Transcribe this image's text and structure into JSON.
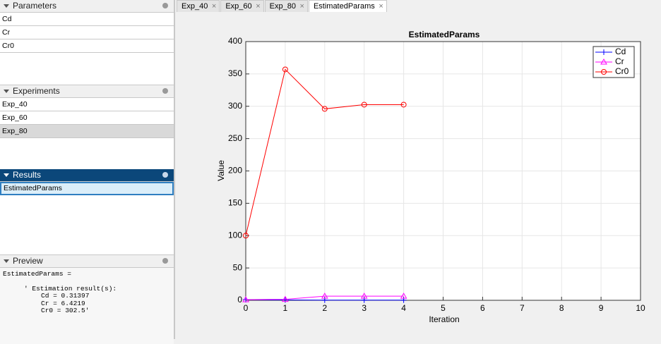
{
  "panels": {
    "parameters": {
      "title": "Parameters",
      "items": [
        "Cd",
        "Cr",
        "Cr0"
      ]
    },
    "experiments": {
      "title": "Experiments",
      "items": [
        "Exp_40",
        "Exp_60",
        "Exp_80"
      ]
    },
    "results": {
      "title": "Results",
      "items": [
        "EstimatedParams"
      ]
    },
    "preview": {
      "title": "Preview",
      "lines": [
        "EstimatedParams =",
        "'  Estimation result(s):",
        "Cd = 0.31397",
        "Cr = 6.4219",
        "Cr0 = 302.5'"
      ]
    }
  },
  "tabs": [
    "Exp_40",
    "Exp_60",
    "Exp_80",
    "EstimatedParams"
  ],
  "chart_data": {
    "type": "line",
    "title": "EstimatedParams",
    "x_label": "Iteration",
    "y_label": "Value",
    "x": [
      0,
      1,
      2,
      3,
      4
    ],
    "series": [
      {
        "name": "Cd",
        "color": "#0000ff",
        "marker": "+",
        "values": [
          1,
          0.5,
          0.3,
          0.31,
          0.31
        ]
      },
      {
        "name": "Cr",
        "color": "#ff00ff",
        "marker": "^",
        "values": [
          1,
          1.5,
          6.4,
          6.4,
          6.4
        ]
      },
      {
        "name": "Cr0",
        "color": "#ff0000",
        "marker": "o",
        "values": [
          100,
          357,
          296,
          302.5,
          302.5
        ]
      }
    ],
    "xlim": [
      0,
      10
    ],
    "xticks": [
      0,
      1,
      2,
      3,
      4,
      5,
      6,
      7,
      8,
      9,
      10
    ],
    "ylim": [
      0,
      400
    ],
    "yticks": [
      0,
      50,
      100,
      150,
      200,
      250,
      300,
      350,
      400
    ],
    "grid": true,
    "legend": "northeast"
  }
}
